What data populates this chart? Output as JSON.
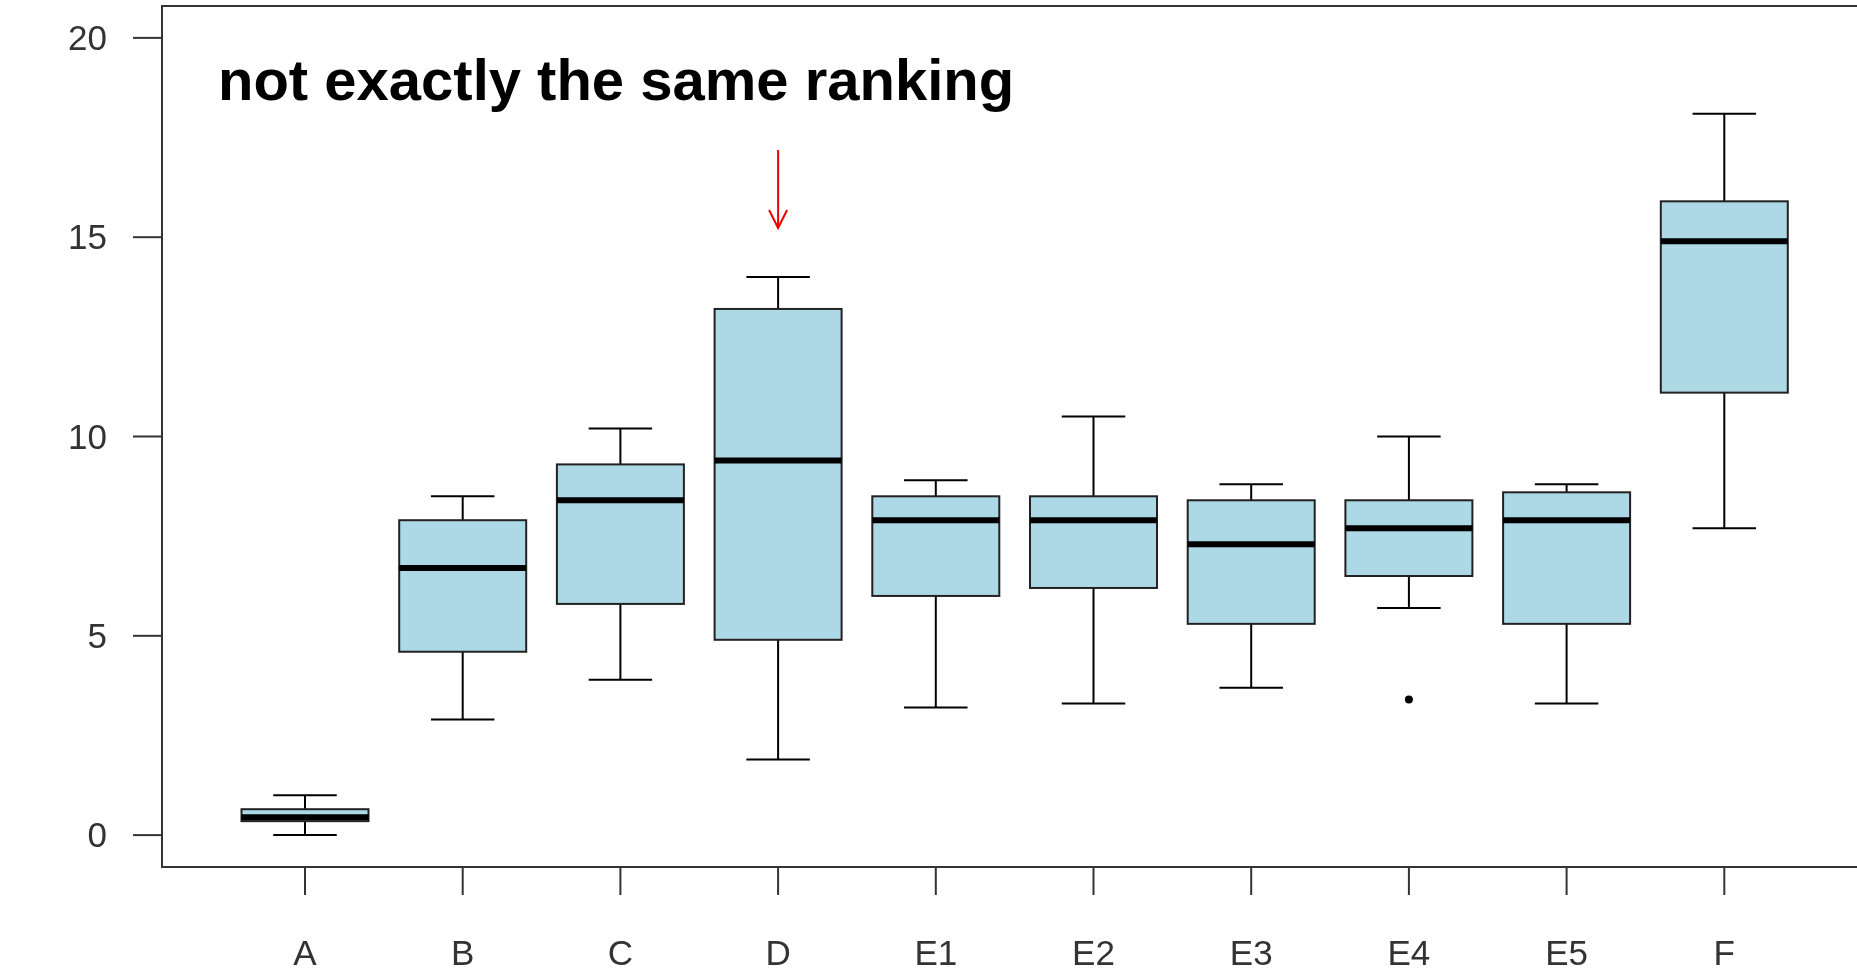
{
  "chart_data": {
    "type": "box",
    "categories": [
      "A",
      "B",
      "C",
      "D",
      "E1",
      "E2",
      "E3",
      "E4",
      "E5",
      "F"
    ],
    "boxes": [
      {
        "low": 0.0,
        "q1": 0.35,
        "median": 0.45,
        "q3": 0.65,
        "high": 1.0
      },
      {
        "low": 2.9,
        "q1": 4.6,
        "median": 6.7,
        "q3": 7.9,
        "high": 8.5
      },
      {
        "low": 3.9,
        "q1": 5.8,
        "median": 8.4,
        "q3": 9.3,
        "high": 10.2
      },
      {
        "low": 1.9,
        "q1": 4.9,
        "median": 9.4,
        "q3": 13.2,
        "high": 14.0
      },
      {
        "low": 3.2,
        "q1": 6.0,
        "median": 7.9,
        "q3": 8.5,
        "high": 8.9
      },
      {
        "low": 3.3,
        "q1": 6.2,
        "median": 7.9,
        "q3": 8.5,
        "high": 10.5
      },
      {
        "low": 3.7,
        "q1": 5.3,
        "median": 7.3,
        "q3": 8.4,
        "high": 8.8
      },
      {
        "low": 5.7,
        "q1": 6.5,
        "median": 7.7,
        "q3": 8.4,
        "high": 10.0,
        "outliers": [
          3.4
        ]
      },
      {
        "low": 3.3,
        "q1": 5.3,
        "median": 7.9,
        "q3": 8.6,
        "high": 8.8
      },
      {
        "low": 7.7,
        "q1": 11.1,
        "median": 14.9,
        "q3": 15.9,
        "high": 18.1
      }
    ],
    "color": "#add8e6",
    "ylim": [
      -0.8,
      20.8
    ],
    "yticks": [
      0,
      5,
      10,
      15,
      20
    ],
    "annotations": [
      "not exactly the same ranking"
    ]
  }
}
